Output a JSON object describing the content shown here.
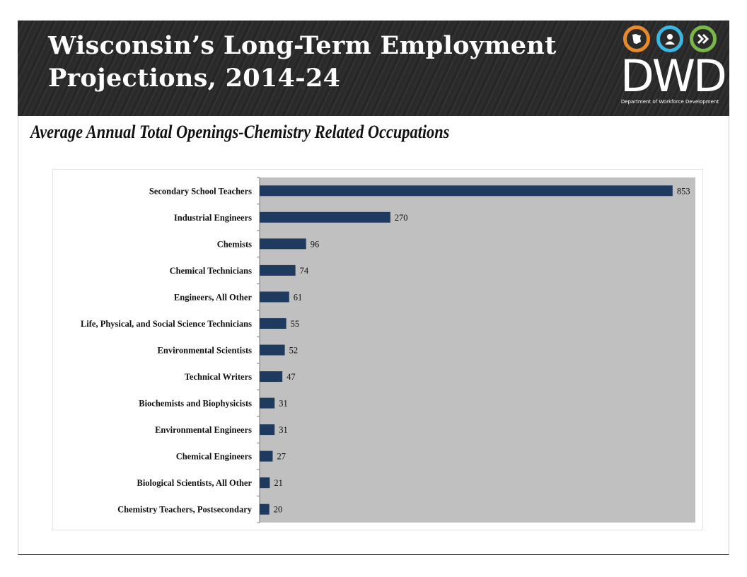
{
  "header": {
    "title_line1": "Wisconsin’s Long-Term Employment",
    "title_line2": "Projections, 2014-24"
  },
  "logo": {
    "wordmark": "DWD",
    "tagline": "Department of Workforce Development",
    "icons": [
      "wisconsin-map-icon",
      "person-icon",
      "forward-arrows-icon"
    ],
    "colors": [
      "#e8892b",
      "#3cb6e0",
      "#7ab648"
    ]
  },
  "colors": {
    "bar": "#1f3a5f",
    "plot_background": "#c0c0c0",
    "header_background": "#2b2b2b"
  },
  "chart_data": {
    "type": "bar",
    "orientation": "horizontal",
    "title": "Average Annual Total Openings-Chemistry Related Occupations",
    "xlabel": "",
    "ylabel": "",
    "xlim": [
      0,
      900
    ],
    "grid": false,
    "categories": [
      "Secondary School Teachers",
      "Industrial Engineers",
      "Chemists",
      "Chemical Technicians",
      "Engineers, All Other",
      "Life, Physical, and Social Science Technicians",
      "Environmental Scientists",
      "Technical Writers",
      "Biochemists and Biophysicists",
      "Environmental Engineers",
      "Chemical Engineers",
      "Biological Scientists, All Other",
      "Chemistry Teachers, Postsecondary"
    ],
    "values": [
      853,
      270,
      96,
      74,
      61,
      55,
      52,
      47,
      31,
      31,
      27,
      21,
      20
    ]
  }
}
